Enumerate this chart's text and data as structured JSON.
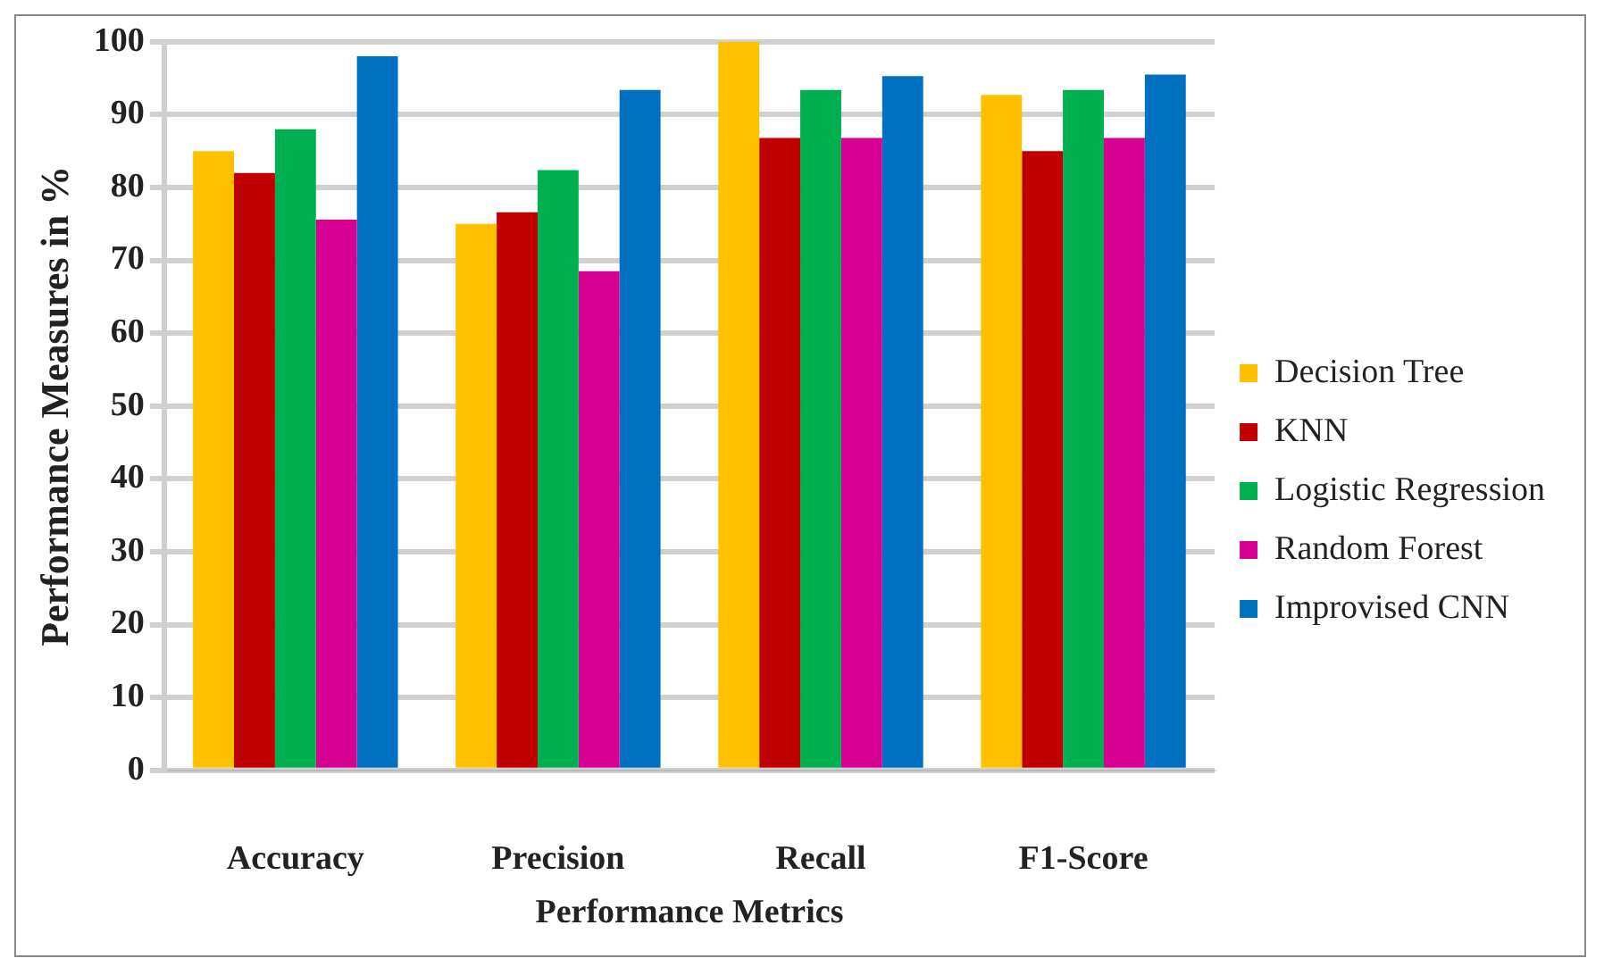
{
  "chart_data": {
    "type": "bar",
    "xlabel": "Performance Metrics",
    "ylabel": "Performance Measures in %",
    "categories": [
      "Accuracy",
      "Precision",
      "Recall",
      "F1-Score"
    ],
    "series": [
      {
        "name": "Decision Tree",
        "color": "#ffc000",
        "values": [
          85,
          75,
          100,
          92.7
        ]
      },
      {
        "name": "KNN",
        "color": "#c00000",
        "values": [
          82,
          76.6,
          86.8,
          85
        ]
      },
      {
        "name": "Logistic Regression",
        "color": "#00b050",
        "values": [
          88,
          82.4,
          93.4,
          93.4
        ]
      },
      {
        "name": "Random Forest",
        "color": "#d60093",
        "values": [
          75.6,
          68.5,
          86.8,
          86.8
        ]
      },
      {
        "name": "Improvised CNN",
        "color": "#0070c0",
        "values": [
          98,
          93.4,
          95.3,
          95.5
        ]
      }
    ],
    "ylim": [
      0,
      100
    ],
    "yticks": [
      0,
      10,
      20,
      30,
      40,
      50,
      60,
      70,
      80,
      90,
      100
    ],
    "grid": "y",
    "legend": "right"
  }
}
